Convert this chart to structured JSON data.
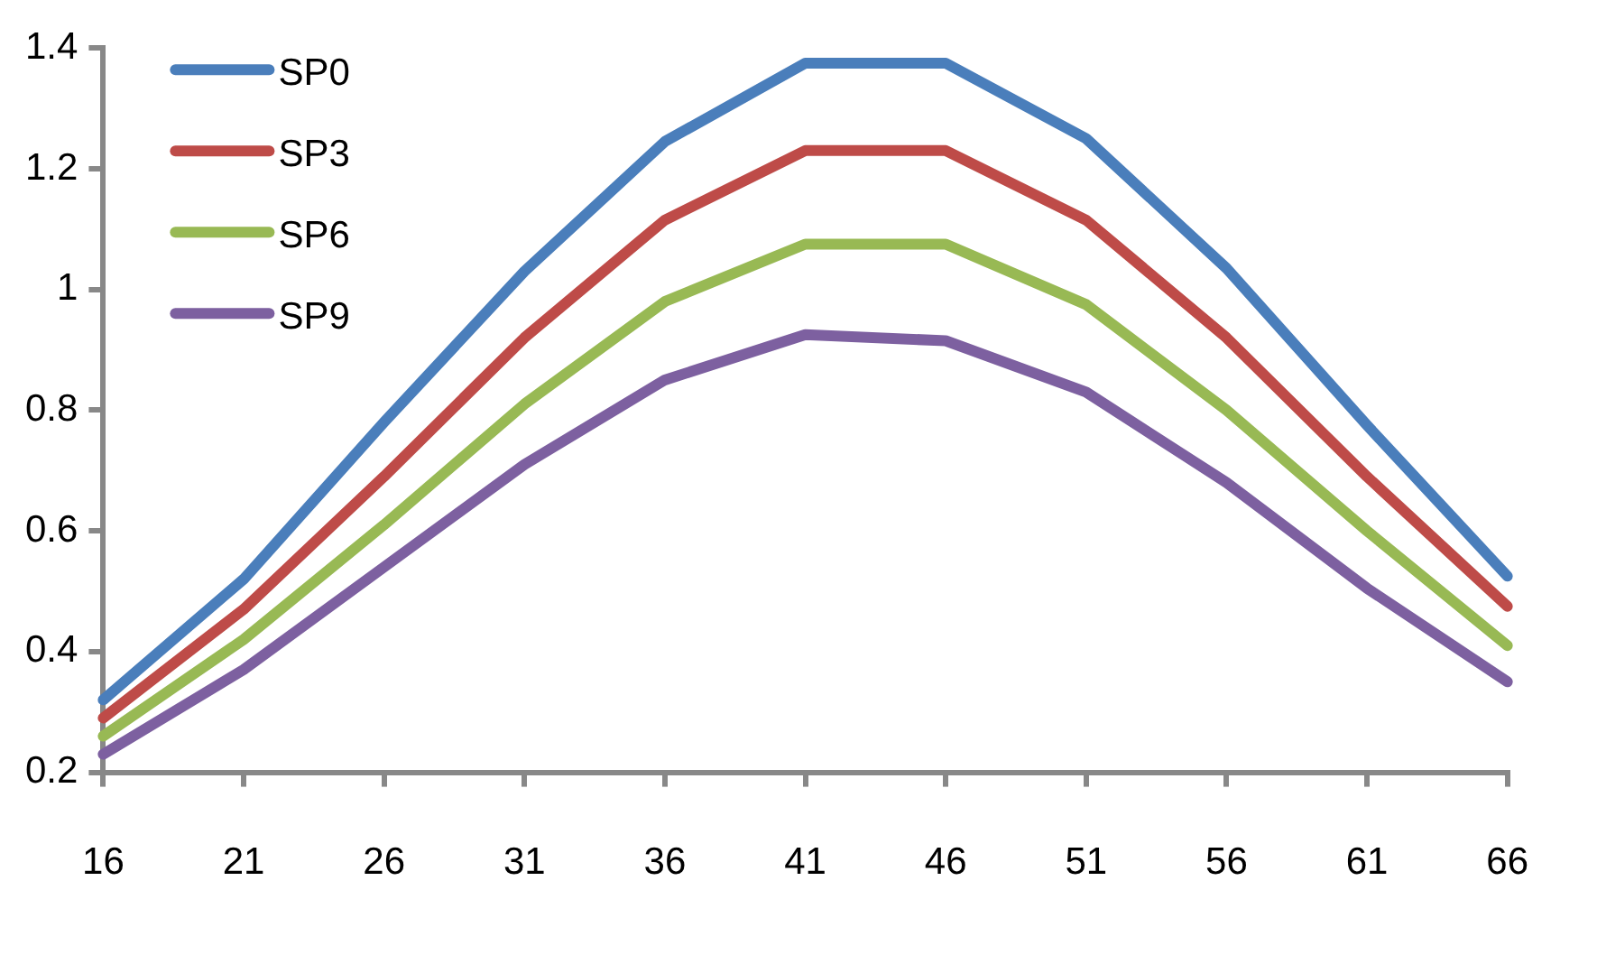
{
  "chart_data": {
    "type": "line",
    "x": [
      16,
      21,
      26,
      31,
      36,
      41,
      46,
      51,
      56,
      61,
      66
    ],
    "series": [
      {
        "name": "SP0",
        "color": "#4a7ebb",
        "values": [
          0.32,
          0.52,
          0.78,
          1.03,
          1.245,
          1.375,
          1.375,
          1.25,
          1.035,
          0.775,
          0.525
        ]
      },
      {
        "name": "SP3",
        "color": "#be4b48",
        "values": [
          0.29,
          0.47,
          0.69,
          0.92,
          1.115,
          1.23,
          1.23,
          1.115,
          0.92,
          0.69,
          0.475
        ]
      },
      {
        "name": "SP6",
        "color": "#98b954",
        "values": [
          0.26,
          0.42,
          0.61,
          0.81,
          0.98,
          1.075,
          1.075,
          0.975,
          0.8,
          0.6,
          0.41
        ]
      },
      {
        "name": "SP9",
        "color": "#7d60a0",
        "values": [
          0.23,
          0.37,
          0.54,
          0.71,
          0.85,
          0.925,
          0.915,
          0.83,
          0.68,
          0.505,
          0.35
        ]
      }
    ],
    "xlim": [
      16,
      66
    ],
    "xticks": [
      16,
      21,
      26,
      31,
      36,
      41,
      46,
      51,
      56,
      61,
      66
    ],
    "ylim": [
      0.2,
      1.4
    ],
    "yticks": [
      0.2,
      0.4,
      0.6,
      0.8,
      1,
      1.2,
      1.4
    ],
    "grid": false,
    "legend": "top left",
    "marker": "none",
    "line_style": "solid"
  }
}
